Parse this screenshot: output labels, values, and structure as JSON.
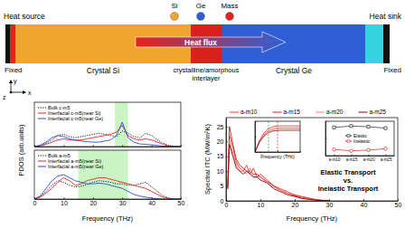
{
  "diagram": {
    "legend": [
      {
        "label": "Si",
        "color": "#f2a52e"
      },
      {
        "label": "Ge",
        "color": "#2f5fd6"
      },
      {
        "label": "Mass",
        "color": "#e3231b"
      }
    ],
    "labels": {
      "heat_source": "Heat source",
      "heat_sink": "Heat sink",
      "fixed_left": "Fixed",
      "fixed_right": "Fixed",
      "crystal_si": "Crystal Si",
      "crystal_ge": "Crystal Ge",
      "interlayer": [
        "crystalline/amorphous",
        "interlayer"
      ],
      "heat_flux": "Heat flux",
      "axis_x": "x",
      "axis_y": "y",
      "axis_z": "z"
    }
  },
  "chart_data": [
    {
      "type": "line",
      "ylabel": "PDOS (arb.units)",
      "legend": "upper left",
      "tick_labels": false,
      "x": [
        0,
        2,
        4,
        6,
        8,
        10,
        12,
        14,
        16,
        18,
        20,
        22,
        24,
        26,
        28,
        30,
        32,
        34,
        36,
        38,
        40,
        42,
        44,
        46,
        48,
        50
      ],
      "xlim": [
        0,
        50
      ],
      "xticks": [
        0,
        10,
        20,
        30,
        40,
        50
      ],
      "ylim": [
        0,
        2
      ],
      "shaded_range": [
        27.5,
        32
      ],
      "series": [
        {
          "name": "Bulk c-m5",
          "color": "#000000",
          "line_style": "dotted",
          "values": [
            0,
            0.05,
            0.15,
            0.3,
            0.5,
            0.55,
            0.45,
            0.4,
            0.45,
            0.5,
            0.55,
            0.6,
            0.55,
            0.5,
            0.45,
            0.7,
            0.6,
            0.45,
            0.4,
            0.6,
            0.5,
            0.3,
            0.15,
            0.05,
            0,
            0
          ]
        },
        {
          "name": "Interfacial c-m5(near Si)",
          "color": "#e8222a",
          "line_style": "solid",
          "values": [
            0,
            0.03,
            0.1,
            0.2,
            0.3,
            0.35,
            0.3,
            0.28,
            0.3,
            0.35,
            0.4,
            0.45,
            0.5,
            0.55,
            0.65,
            0.95,
            0.5,
            0.35,
            0.3,
            0.35,
            0.3,
            0.2,
            0.1,
            0.03,
            0,
            0
          ]
        },
        {
          "name": "Interfacial c-m5(near Ge)",
          "color": "#2b4fd8",
          "line_style": "solid",
          "values": [
            0,
            0.06,
            0.2,
            0.4,
            0.5,
            0.45,
            0.35,
            0.3,
            0.25,
            0.22,
            0.2,
            0.2,
            0.25,
            0.3,
            0.5,
            1.1,
            0.4,
            0.2,
            0.12,
            0.1,
            0.08,
            0.05,
            0.02,
            0.01,
            0,
            0
          ]
        }
      ]
    },
    {
      "type": "line",
      "xlabel": "Frequency (THz)",
      "legend": "upper left",
      "tick_labels": "x",
      "x": [
        0,
        2,
        4,
        6,
        8,
        10,
        12,
        14,
        16,
        18,
        20,
        22,
        24,
        26,
        28,
        30,
        32,
        34,
        36,
        38,
        40,
        42,
        44,
        46,
        48,
        50
      ],
      "xlim": [
        0,
        50
      ],
      "xticks": [
        0,
        10,
        20,
        30,
        40,
        50
      ],
      "ylim": [
        0,
        1.6
      ],
      "shaded_range": [
        15,
        32
      ],
      "series": [
        {
          "name": "Bulk a-m5",
          "color": "#000000",
          "line_style": "dotted",
          "values": [
            0,
            0.08,
            0.25,
            0.45,
            0.6,
            0.55,
            0.45,
            0.4,
            0.42,
            0.48,
            0.55,
            0.6,
            0.58,
            0.55,
            0.5,
            0.5,
            0.45,
            0.45,
            0.5,
            0.55,
            0.4,
            0.25,
            0.1,
            0.03,
            0,
            0
          ]
        },
        {
          "name": "Interfacial a-m5(near Si)",
          "color": "#e8222a",
          "line_style": "solid",
          "values": [
            0,
            0.06,
            0.2,
            0.35,
            0.55,
            0.7,
            0.6,
            0.45,
            0.5,
            0.6,
            0.65,
            0.7,
            0.7,
            0.65,
            0.6,
            0.55,
            0.5,
            0.45,
            0.4,
            0.35,
            0.25,
            0.15,
            0.06,
            0.02,
            0,
            0
          ]
        },
        {
          "name": "Interfacial a-m5(near Ge)",
          "color": "#2b4fd8",
          "line_style": "solid",
          "values": [
            0,
            0.1,
            0.35,
            0.6,
            0.75,
            0.8,
            0.7,
            0.6,
            0.55,
            0.5,
            0.5,
            0.52,
            0.5,
            0.45,
            0.4,
            0.35,
            0.25,
            0.15,
            0.1,
            0.06,
            0.03,
            0.01,
            0,
            0,
            0,
            0
          ]
        }
      ]
    },
    {
      "type": "line",
      "xlabel": "Frequency (THz)",
      "ylabel": "Spectral ITC (MW/m²K)",
      "legend": "top",
      "annotations": [
        "Elastic Transport",
        "vs.",
        "Inelastic Transport"
      ],
      "x": [
        0.5,
        1,
        2,
        3,
        4,
        5,
        6,
        7,
        8,
        9,
        10,
        12,
        14,
        16,
        18,
        20,
        22,
        24,
        26,
        28,
        30
      ],
      "xlim": [
        0,
        50
      ],
      "xticks": [
        0,
        10,
        20,
        30,
        40,
        50
      ],
      "ylim": [
        0,
        28
      ],
      "yticks": [
        0,
        5,
        10,
        15,
        20,
        25
      ],
      "series": [
        {
          "name": "a-m10",
          "color": "#ff3030",
          "line_style": "solid",
          "values": [
            5,
            22,
            18,
            13,
            11,
            10,
            12,
            9,
            11,
            8,
            9,
            7,
            5,
            4,
            3,
            2,
            1.5,
            1,
            0.5,
            0.2,
            0
          ]
        },
        {
          "name": "a-m15",
          "color": "#c81e1e",
          "line_style": "solid",
          "values": [
            5,
            25,
            19,
            14,
            12,
            11,
            10,
            10,
            9,
            9,
            8,
            6.5,
            5,
            3.5,
            2.5,
            1.8,
            1.2,
            0.8,
            0.4,
            0.1,
            0
          ]
        },
        {
          "name": "a-m20",
          "color": "#ff7a7a",
          "line_style": "solid",
          "values": [
            4,
            20,
            16,
            12,
            10,
            10,
            9,
            11,
            8,
            8,
            8,
            6,
            4.5,
            3.5,
            2.5,
            1.5,
            1,
            0.6,
            0.3,
            0.1,
            0
          ]
        },
        {
          "name": "a-m25",
          "color": "#8b0000",
          "line_style": "solid",
          "values": [
            4,
            19,
            15,
            11,
            10,
            9,
            10,
            9,
            8,
            8,
            7,
            6,
            4,
            3,
            2,
            1.5,
            0.8,
            0.5,
            0.3,
            0.1,
            0
          ]
        }
      ]
    },
    {
      "type": "line",
      "xlabel": "Frequency (THz)",
      "tick_labels": false,
      "x": [
        0,
        5,
        10,
        15,
        20,
        25,
        30,
        40,
        50
      ],
      "xlim": [
        0,
        50
      ],
      "xticks": [
        0,
        25,
        50
      ],
      "ylim": [
        0,
        200
      ],
      "yticks": [
        0,
        100,
        200
      ],
      "vlines": [
        {
          "x": 15,
          "color": "#2ca02c"
        },
        {
          "x": 25,
          "color": "#d62728"
        }
      ],
      "series": [
        {
          "color": "#ff3030",
          "line_style": "solid",
          "values": [
            0,
            70,
            115,
            140,
            152,
            156,
            157,
            157,
            157
          ]
        },
        {
          "color": "#c81e1e",
          "line_style": "solid",
          "values": [
            0,
            75,
            125,
            152,
            165,
            169,
            170,
            170,
            170
          ]
        },
        {
          "color": "#ff7a7a",
          "line_style": "solid",
          "values": [
            0,
            65,
            108,
            132,
            143,
            147,
            148,
            148,
            148
          ]
        },
        {
          "color": "#8b0000",
          "line_style": "solid",
          "values": [
            0,
            62,
            103,
            126,
            137,
            140,
            141,
            141,
            141
          ]
        }
      ]
    },
    {
      "type": "line",
      "legend": "center",
      "tick_labels": "x",
      "categories": [
        "a-m10",
        "a-m15",
        "a-m20",
        "a-m25"
      ],
      "ylim": [
        0,
        100
      ],
      "yticks": [
        0,
        50,
        100
      ],
      "series": [
        {
          "name": "Elastic",
          "color": "#222222",
          "marker": "square",
          "line_style": "solid",
          "values": [
            82,
            86,
            84,
            80
          ]
        },
        {
          "name": "Inelastic",
          "color": "#e02020",
          "marker": "circle",
          "line_style": "solid",
          "values": [
            18,
            14,
            16,
            20
          ]
        }
      ]
    }
  ]
}
